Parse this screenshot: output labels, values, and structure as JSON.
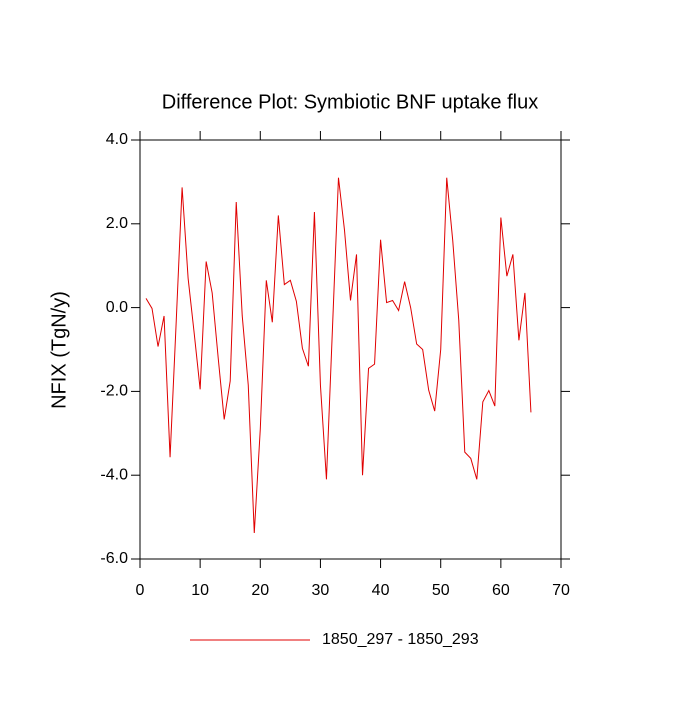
{
  "chart_data": {
    "type": "line",
    "title": "Difference Plot: Symbiotic BNF uptake flux",
    "y_label": "NFIX  (TgN/y)",
    "x": [
      1,
      2,
      3,
      4,
      5,
      6,
      7,
      8,
      9,
      10,
      11,
      12,
      13,
      14,
      15,
      16,
      17,
      18,
      19,
      20,
      21,
      22,
      23,
      24,
      25,
      26,
      27,
      28,
      29,
      30,
      31,
      32,
      33,
      34,
      35,
      36,
      37,
      38,
      39,
      40,
      41,
      42,
      43,
      44,
      45,
      46,
      47,
      48,
      49,
      50,
      51,
      52,
      53,
      54,
      55,
      56,
      57,
      58,
      59,
      60,
      61,
      62,
      63,
      64,
      65
    ],
    "series": [
      {
        "name": "1850_297 - 1850_293",
        "color": "#e00000",
        "values": [
          0.22,
          -0.02,
          -0.93,
          -0.2,
          -3.57,
          -0.4,
          2.87,
          0.7,
          -0.6,
          -1.95,
          1.1,
          0.35,
          -1.2,
          -2.67,
          -1.75,
          2.52,
          -0.2,
          -1.85,
          -5.38,
          -2.9,
          0.65,
          -0.35,
          2.2,
          0.55,
          0.65,
          0.15,
          -0.97,
          -1.4,
          2.28,
          -1.85,
          -4.1,
          -0.5,
          3.1,
          1.85,
          0.17,
          1.27,
          -4.0,
          -1.45,
          -1.35,
          1.62,
          0.12,
          0.17,
          -0.07,
          0.62,
          0.0,
          -0.87,
          -1.0,
          -1.97,
          -2.47,
          -1.0,
          3.1,
          1.6,
          -0.3,
          -3.45,
          -3.6,
          -4.1,
          -2.25,
          -1.98,
          -2.35,
          2.15,
          0.75,
          1.27,
          -0.78,
          0.35,
          -2.5
        ]
      }
    ],
    "xlim": [
      0,
      70
    ],
    "xticks": [
      0,
      10,
      20,
      30,
      40,
      50,
      60,
      70
    ],
    "ylim": [
      -6,
      4
    ],
    "yticks": [
      {
        "value": -6,
        "label": "-6.0"
      },
      {
        "value": -4,
        "label": "-4.0"
      },
      {
        "value": -2,
        "label": "-2.0"
      },
      {
        "value": 0,
        "label": "0.0"
      },
      {
        "value": 2,
        "label": "2.0"
      },
      {
        "value": 4,
        "label": "4.0"
      }
    ]
  }
}
